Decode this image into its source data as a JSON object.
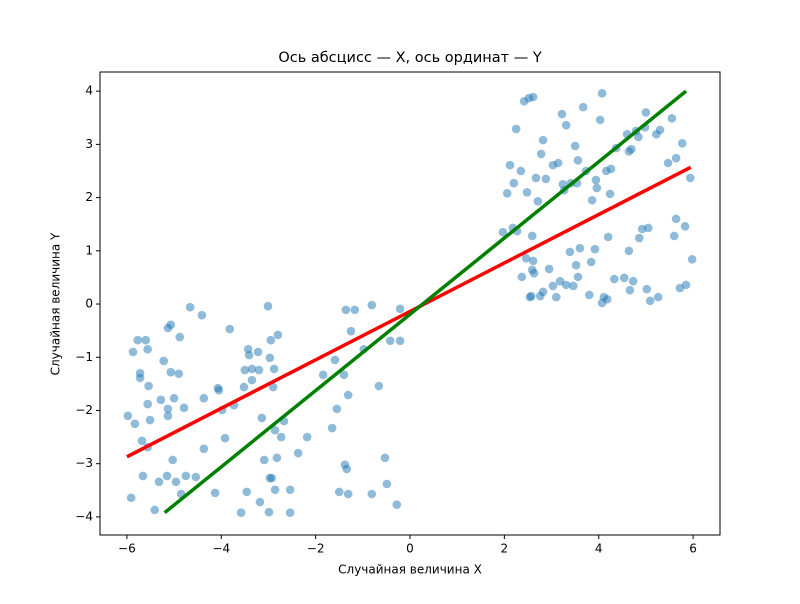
{
  "chart_data": {
    "type": "scatter",
    "title": "Ось абсцисс — X, ось ординат — Y",
    "xlabel": "Случайная величина X",
    "xlabel_color": "#ff0000",
    "ylabel": "Случайная величина Y",
    "xlim": [
      -6.57,
      6.57
    ],
    "ylim": [
      -4.34,
      4.36
    ],
    "xticks": [
      {
        "value": -6,
        "label": "−6"
      },
      {
        "value": -4,
        "label": "−4"
      },
      {
        "value": -2,
        "label": "−2"
      },
      0,
      2,
      4,
      6
    ],
    "yticks": [
      {
        "value": -4,
        "label": "−4"
      },
      {
        "value": -3,
        "label": "−3"
      },
      {
        "value": -2,
        "label": "−2"
      },
      {
        "value": -1,
        "label": "−1"
      },
      0,
      1,
      2,
      3,
      4
    ],
    "series": [
      {
        "mode": "markers",
        "color": "#1f77b4",
        "alpha": 0.5,
        "x": [
          -5.98,
          -5.91,
          -5.87,
          -5.83,
          -5.77,
          -5.72,
          -5.72,
          -5.68,
          -5.66,
          -5.6,
          -5.56,
          -5.56,
          -5.54,
          -5.51,
          -5.56,
          -5.41,
          -5.32,
          -5.28,
          -5.22,
          -5.15,
          -5.13,
          -5.13,
          -5.13,
          -5.07,
          -5.07,
          -5.03,
          -5.0,
          -4.96,
          -4.9,
          -4.88,
          -4.85,
          -4.79,
          -4.75,
          -4.66,
          -4.54,
          -4.41,
          -4.37,
          -4.37,
          -4.13,
          -4.07,
          -4.05,
          -3.98,
          -3.92,
          -3.82,
          -3.73,
          -3.58,
          -3.52,
          -3.5,
          -3.46,
          -3.43,
          -3.41,
          -3.35,
          -3.35,
          -3.22,
          -3.2,
          -3.18,
          -3.14,
          -3.09,
          -3.01,
          -2.99,
          -2.97,
          -2.97,
          -2.95,
          -2.93,
          -2.9,
          -2.88,
          -2.86,
          -2.86,
          -2.82,
          -2.8,
          -2.73,
          -2.67,
          -2.54,
          -2.54,
          -2.37,
          -2.18,
          -1.84,
          -1.65,
          -1.59,
          -1.55,
          -1.5,
          -1.4,
          -1.38,
          -1.36,
          -1.34,
          -1.31,
          -1.31,
          -1.25,
          -1.17,
          -0.98,
          -0.81,
          -0.81,
          -0.66,
          -0.53,
          -0.49,
          -0.42,
          -0.28,
          -0.21,
          -0.21,
          1.97,
          2.06,
          2.12,
          2.18,
          2.2,
          2.25,
          2.27,
          2.35,
          2.37,
          2.42,
          2.46,
          2.48,
          2.52,
          2.54,
          2.57,
          2.59,
          2.59,
          2.61,
          2.61,
          2.63,
          2.67,
          2.71,
          2.76,
          2.78,
          2.82,
          2.82,
          2.88,
          2.95,
          3.03,
          3.03,
          3.1,
          3.14,
          3.18,
          3.22,
          3.24,
          3.27,
          3.31,
          3.31,
          3.39,
          3.41,
          3.46,
          3.5,
          3.52,
          3.54,
          3.56,
          3.56,
          3.6,
          3.67,
          3.73,
          3.8,
          3.84,
          3.86,
          3.92,
          3.94,
          3.96,
          4.03,
          4.07,
          4.07,
          4.11,
          4.16,
          4.18,
          4.2,
          4.24,
          4.26,
          4.33,
          4.37,
          4.54,
          4.6,
          4.64,
          4.64,
          4.66,
          4.69,
          4.73,
          4.79,
          4.84,
          4.86,
          4.92,
          4.98,
          5.0,
          5.02,
          5.05,
          5.09,
          5.22,
          5.26,
          5.3,
          5.47,
          5.55,
          5.6,
          5.64,
          5.64,
          5.72,
          5.77,
          5.83,
          5.85,
          5.94,
          5.98
        ],
        "values": [
          -2.1,
          -3.64,
          -0.9,
          -2.25,
          -0.68,
          -1.39,
          -1.3,
          -2.57,
          -3.23,
          -0.68,
          -0.85,
          -1.88,
          -1.54,
          -2.18,
          -2.69,
          -3.87,
          -3.34,
          -1.8,
          -1.07,
          -3.23,
          -1.97,
          -2.1,
          -0.45,
          -0.39,
          -1.28,
          -2.93,
          -1.77,
          -3.34,
          -1.31,
          -0.62,
          -3.57,
          -1.95,
          -3.23,
          -0.06,
          -3.25,
          -0.21,
          -2.72,
          -1.77,
          -3.55,
          -1.58,
          -1.62,
          -1.99,
          -2.52,
          -0.47,
          -1.9,
          -3.92,
          -1.56,
          -1.24,
          -3.53,
          -0.85,
          -0.96,
          -1.22,
          -1.43,
          -0.9,
          -1.24,
          -3.72,
          -2.14,
          -2.93,
          -0.04,
          -3.91,
          -1.01,
          -3.27,
          -0.68,
          -3.27,
          -1.56,
          -1.22,
          -3.49,
          -2.37,
          -2.89,
          -0.58,
          -2.5,
          -2.2,
          -3.92,
          -3.49,
          -2.8,
          -2.5,
          -1.33,
          -2.33,
          -1.05,
          -1.97,
          -3.53,
          -1.33,
          -3.02,
          -0.11,
          -3.1,
          -1.71,
          -3.57,
          -0.51,
          -0.11,
          -0.85,
          -0.02,
          -3.57,
          -1.54,
          -2.89,
          -3.38,
          -0.69,
          -3.77,
          -0.09,
          -0.69,
          1.35,
          2.08,
          2.61,
          1.43,
          2.27,
          3.29,
          1.37,
          2.5,
          0.51,
          3.81,
          0.86,
          2.1,
          3.87,
          0.13,
          0.15,
          0.64,
          1.28,
          3.89,
          0.81,
          0.58,
          2.37,
          1.93,
          0.15,
          2.82,
          0.23,
          3.08,
          2.35,
          0.66,
          2.61,
          0.34,
          0.13,
          2.65,
          0.43,
          3.57,
          2.25,
          2.14,
          3.36,
          0.36,
          0.98,
          2.27,
          0.34,
          2.97,
          0.73,
          2.27,
          0.51,
          2.7,
          1.05,
          3.7,
          2.5,
          0.17,
          0.79,
          1.95,
          1.03,
          2.33,
          2.18,
          3.46,
          3.96,
          0.02,
          0.13,
          2.5,
          0.09,
          1.26,
          2.07,
          2.54,
          0.47,
          2.93,
          0.49,
          3.19,
          2.87,
          1.0,
          0.26,
          2.91,
          0.43,
          3.25,
          3.14,
          1.24,
          1.41,
          3.32,
          3.6,
          0.28,
          1.43,
          0.06,
          3.19,
          0.13,
          3.27,
          2.65,
          3.49,
          1.28,
          1.6,
          2.74,
          0.3,
          3.02,
          1.46,
          0.36,
          2.37,
          0.84
        ]
      },
      {
        "mode": "line",
        "color": "#ff0000",
        "x": [
          -6,
          5.95
        ],
        "values": [
          -2.87,
          2.57
        ]
      },
      {
        "mode": "line",
        "color": "#008000",
        "x": [
          -5.2,
          5.85
        ],
        "values": [
          -3.92,
          4.0
        ]
      }
    ]
  }
}
